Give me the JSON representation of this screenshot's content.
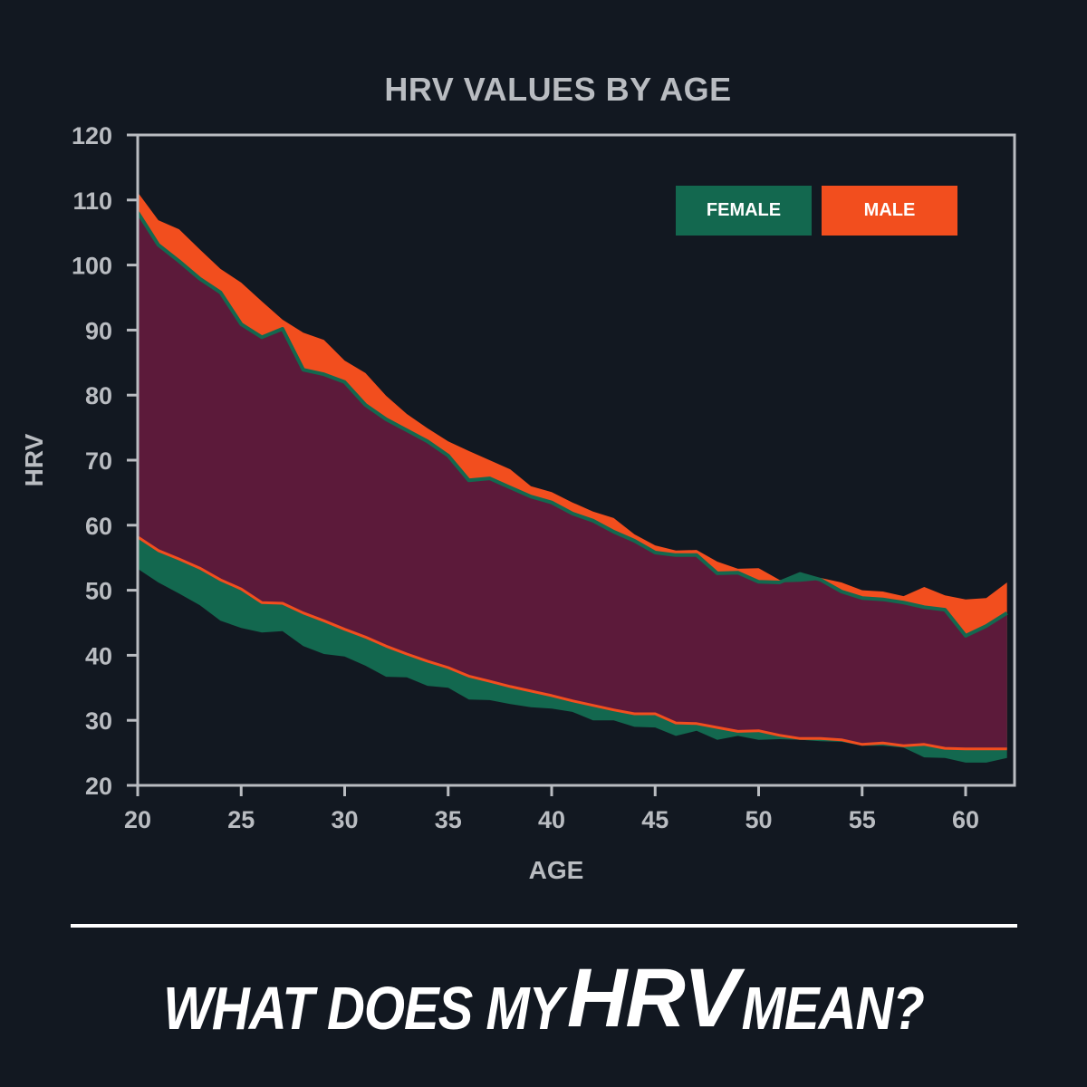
{
  "title": "HRV VALUES BY AGE",
  "legend": {
    "female": {
      "label": "FEMALE",
      "color": "#13684f"
    },
    "male": {
      "label": "MALE",
      "color": "#f24e1e"
    }
  },
  "colors": {
    "background": "#121821",
    "axis": "#b9bcc1",
    "female": "#13684f",
    "male": "#f24e1e",
    "overlap": "#5c1a3a"
  },
  "headline": {
    "part1": "WHAT DOES MY",
    "emphasis": "HRV",
    "part2": "MEAN?"
  },
  "chart_data": {
    "type": "area",
    "title": "HRV VALUES BY AGE",
    "xlabel": "AGE",
    "ylabel": "HRV",
    "xlim": [
      20,
      62.4
    ],
    "ylim": [
      20,
      120
    ],
    "xticks": [
      20,
      25,
      30,
      35,
      40,
      45,
      50,
      55,
      60
    ],
    "yticks": [
      20,
      30,
      40,
      50,
      60,
      70,
      80,
      90,
      100,
      110,
      120
    ],
    "grid": false,
    "legend_position": "top-right",
    "x": [
      20,
      21,
      22,
      23,
      24,
      25,
      26,
      27,
      28,
      29,
      30,
      31,
      32,
      33,
      34,
      35,
      36,
      37,
      38,
      39,
      40,
      41,
      42,
      43,
      44,
      45,
      46,
      47,
      48,
      49,
      50,
      51,
      52,
      53,
      54,
      55,
      56,
      57,
      58,
      59,
      60,
      61,
      62
    ],
    "series": [
      {
        "name": "FEMALE",
        "color": "#13684f",
        "upper": [
          108.1,
          103.1,
          100.6,
          97.9,
          95.8,
          90.9,
          88.9,
          90.2,
          83.9,
          83.2,
          82.0,
          78.5,
          76.3,
          74.6,
          72.9,
          70.7,
          66.9,
          67.2,
          65.8,
          64.4,
          63.5,
          61.8,
          60.7,
          59.0,
          57.6,
          55.8,
          55.4,
          55.4,
          52.6,
          52.7,
          51.3,
          51.2,
          52.5,
          51.6,
          49.8,
          48.8,
          48.6,
          48.1,
          47.4,
          47.0,
          43.0,
          44.5,
          46.5
        ],
        "lower": [
          53.3,
          51.2,
          49.5,
          47.7,
          45.3,
          44.2,
          43.5,
          43.7,
          41.4,
          40.2,
          39.8,
          38.4,
          36.7,
          36.6,
          35.3,
          35.0,
          33.2,
          33.1,
          32.5,
          32.0,
          31.8,
          31.3,
          30.0,
          30.0,
          29.0,
          28.9,
          27.6,
          28.4,
          27.0,
          27.6,
          27.0,
          27.1,
          27.0,
          26.8,
          26.7,
          26.1,
          26.1,
          25.8,
          24.3,
          24.2,
          23.5,
          23.5,
          24.2
        ]
      },
      {
        "name": "MALE",
        "color": "#f24e1e",
        "upper": [
          111.2,
          106.9,
          105.5,
          102.4,
          99.4,
          97.3,
          94.4,
          91.6,
          89.6,
          88.5,
          85.3,
          83.4,
          79.9,
          77.1,
          74.9,
          72.9,
          71.4,
          70.0,
          68.6,
          66.0,
          65.1,
          63.5,
          62.1,
          61.1,
          58.6,
          56.9,
          56.1,
          56.2,
          54.4,
          53.3,
          53.4,
          51.6,
          51.3,
          51.9,
          51.2,
          50.0,
          49.8,
          49.1,
          50.5,
          49.2,
          48.6,
          48.8,
          51.2
        ],
        "lower": [
          58.2,
          56.1,
          54.8,
          53.4,
          51.6,
          50.2,
          48.1,
          48.0,
          46.5,
          45.3,
          44.0,
          42.8,
          41.4,
          40.2,
          39.1,
          38.1,
          36.8,
          36.0,
          35.2,
          34.5,
          33.8,
          33.0,
          32.3,
          31.6,
          31.0,
          31.0,
          29.6,
          29.5,
          28.9,
          28.3,
          28.4,
          27.7,
          27.2,
          27.2,
          27.0,
          26.3,
          26.5,
          26.1,
          26.3,
          25.7,
          25.6,
          25.6,
          25.6
        ]
      }
    ]
  }
}
